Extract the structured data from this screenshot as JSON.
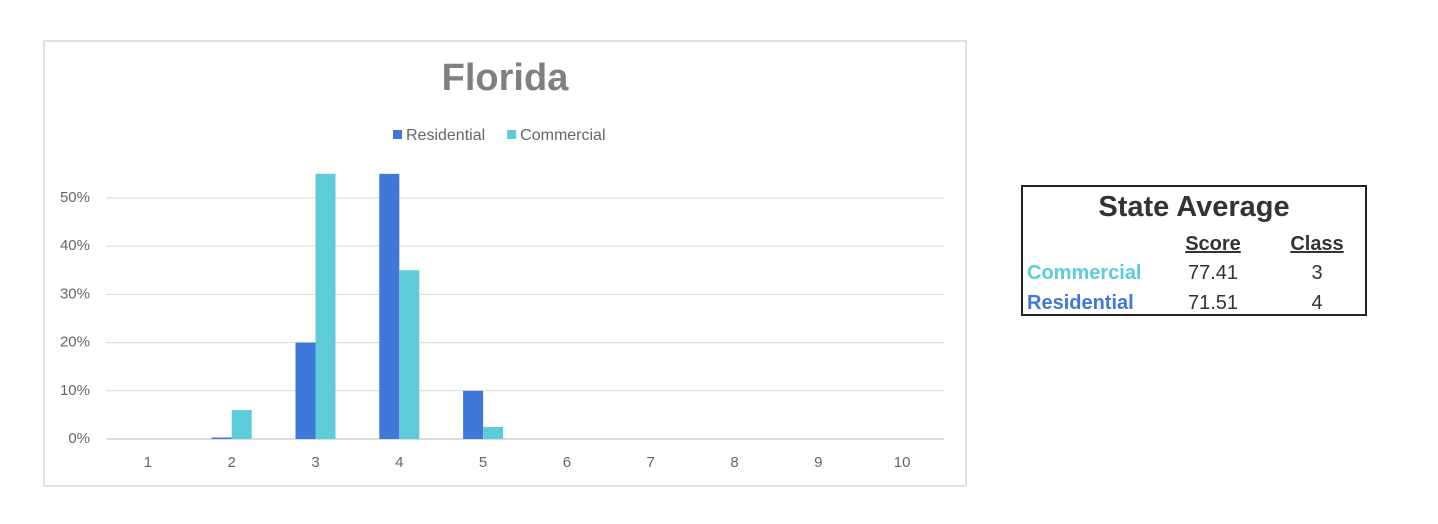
{
  "chart_data": {
    "type": "bar",
    "title": "Florida",
    "categories": [
      "1",
      "2",
      "3",
      "4",
      "5",
      "6",
      "7",
      "8",
      "9",
      "10"
    ],
    "series": [
      {
        "name": "Residential",
        "color": "#3f78d8",
        "values": [
          0,
          0.3,
          20,
          55,
          10,
          0,
          0,
          0,
          0,
          0
        ]
      },
      {
        "name": "Commercial",
        "color": "#5ecbd9",
        "values": [
          0,
          6,
          55,
          35,
          2.5,
          0,
          0,
          0,
          0,
          0
        ]
      }
    ],
    "ylim": [
      0,
      56
    ],
    "yticks": [
      {
        "value": 0,
        "label": "0%"
      },
      {
        "value": 10,
        "label": "10%"
      },
      {
        "value": 20,
        "label": "20%"
      },
      {
        "value": 30,
        "label": "30%"
      },
      {
        "value": 40,
        "label": "40%"
      },
      {
        "value": 50,
        "label": "50%"
      }
    ],
    "grid": true,
    "legend": "top"
  },
  "table": {
    "title": "State Average",
    "columns": [
      "Score",
      "Class"
    ],
    "rows": [
      {
        "label": "Commercial",
        "score": 77.41,
        "class": 3
      },
      {
        "label": "Residential",
        "score": 71.51,
        "class": 4
      }
    ]
  }
}
